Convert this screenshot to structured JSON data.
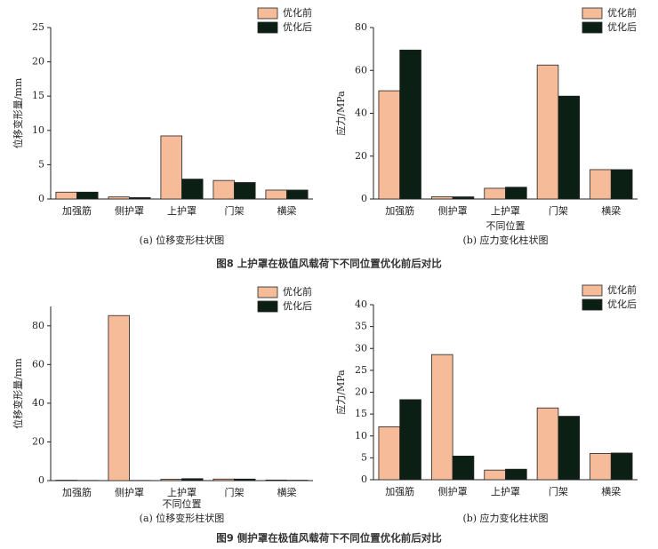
{
  "chart_data": [
    {
      "type": "bar",
      "ylabel": "位移变形量/mm",
      "caption": "(a) 位移变形柱状图",
      "legend": "upper right",
      "categories": [
        "加强筋",
        "侧护罩",
        "上护罩",
        "门架",
        "横梁"
      ],
      "series": [
        {
          "name": "优化前",
          "color": "#f6bb98",
          "values": [
            1.0,
            0.3,
            9.2,
            2.7,
            1.3
          ]
        },
        {
          "name": "优化后",
          "color": "#0c1f14",
          "values": [
            1.0,
            0.2,
            2.9,
            2.4,
            1.3
          ]
        }
      ],
      "ylim": [
        0,
        25
      ],
      "yticks": [
        0,
        5,
        10,
        15,
        20,
        25
      ]
    },
    {
      "type": "bar",
      "ylabel": "应力/MPa",
      "xlabel": "不同位置",
      "caption": "(b) 应力变化柱状图",
      "legend": "upper right",
      "categories": [
        "加强筋",
        "侧护罩",
        "上护罩",
        "门架",
        "横梁"
      ],
      "series": [
        {
          "name": "优化前",
          "color": "#f6bb98",
          "values": [
            50.5,
            1.0,
            5.0,
            62.5,
            13.7
          ]
        },
        {
          "name": "优化后",
          "color": "#0c1f14",
          "values": [
            69.5,
            1.0,
            5.5,
            48.0,
            13.7
          ]
        }
      ],
      "ylim": [
        0,
        80
      ],
      "yticks": [
        0,
        20,
        40,
        60,
        80
      ]
    },
    {
      "type": "bar",
      "ylabel": "位移变形量/mm",
      "xlabel": "不同位置",
      "caption": "(a) 位移变形柱状图",
      "legend": "upper right",
      "categories": [
        "加强筋",
        "侧护罩",
        "上护罩",
        "门架",
        "横梁"
      ],
      "series": [
        {
          "name": "优化前",
          "color": "#f6bb98",
          "values": [
            0.2,
            85.3,
            0.7,
            0.8,
            0.3
          ]
        },
        {
          "name": "优化后",
          "color": "#0c1f14",
          "values": [
            0.1,
            0.1,
            1.0,
            0.8,
            0.2
          ]
        }
      ],
      "ylim": [
        0,
        90
      ],
      "yticks": [
        0,
        20,
        40,
        60,
        80
      ]
    },
    {
      "type": "bar",
      "ylabel": "应力/MPa",
      "caption": "(b) 应力变化柱状图",
      "legend": "upper right",
      "categories": [
        "加强筋",
        "侧护罩",
        "上护罩",
        "门架",
        "横梁"
      ],
      "series": [
        {
          "name": "优化前",
          "color": "#f6bb98",
          "values": [
            12.1,
            28.6,
            2.2,
            16.4,
            6.0
          ]
        },
        {
          "name": "优化后",
          "color": "#0c1f14",
          "values": [
            18.3,
            5.4,
            2.4,
            14.5,
            6.1
          ]
        }
      ],
      "ylim": [
        0,
        40
      ],
      "yticks": [
        0,
        5,
        10,
        15,
        20,
        25,
        30,
        35,
        40
      ]
    }
  ],
  "figure_captions": [
    "图8  上护罩在极值风载荷下不同位置优化前后对比",
    "图9  侧护罩在极值风载荷下不同位置优化前后对比"
  ]
}
